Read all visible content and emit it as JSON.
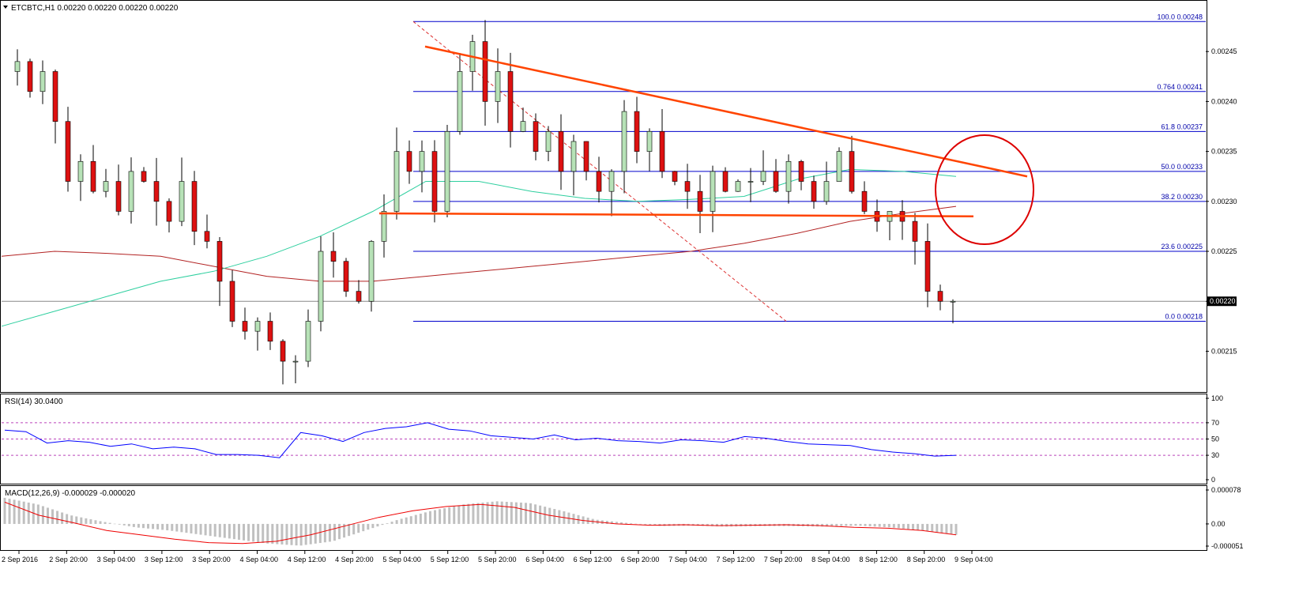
{
  "chart_data": {
    "type": "candlestick",
    "symbol_header": "ETCBTC,H1  0.00220 0.00220 0.00220 0.00220",
    "ylim": [
      0.00211,
      0.0025
    ],
    "price_ticks": [
      "0.00245",
      "0.00240",
      "0.00235",
      "0.00230",
      "0.00225",
      "0.00220",
      "0.00215"
    ],
    "current_price": "0.00220",
    "x_labels": [
      "2 Sep 2016",
      "2 Sep 20:00",
      "3 Sep 04:00",
      "3 Sep 12:00",
      "3 Sep 20:00",
      "4 Sep 04:00",
      "4 Sep 12:00",
      "4 Sep 20:00",
      "5 Sep 04:00",
      "5 Sep 12:00",
      "5 Sep 20:00",
      "6 Sep 04:00",
      "6 Sep 12:00",
      "6 Sep 20:00",
      "7 Sep 04:00",
      "7 Sep 12:00",
      "7 Sep 20:00",
      "8 Sep 04:00",
      "8 Sep 12:00",
      "8 Sep 20:00",
      "9 Sep 04:00"
    ],
    "fib_levels": [
      {
        "label": "100.0  0.00248",
        "price": 0.00248
      },
      {
        "label": "0.764  0.00241",
        "price": 0.00241
      },
      {
        "label": "61.8  0.00237",
        "price": 0.00237
      },
      {
        "label": "50.0  0.00233",
        "price": 0.00233
      },
      {
        "label": "38.2  0.00230",
        "price": 0.0023
      },
      {
        "label": "23.6  0.00225",
        "price": 0.00225
      },
      {
        "label": "0.0  0.00218",
        "price": 0.00218
      }
    ],
    "close_path": [
      0.00243,
      0.00244,
      0.00241,
      0.00243,
      0.00238,
      0.00232,
      0.00234,
      0.00231,
      0.00232,
      0.00229,
      0.00233,
      0.00232,
      0.0023,
      0.00228,
      0.00232,
      0.00227,
      0.00226,
      0.00222,
      0.00218,
      0.00217,
      0.00218,
      0.00216,
      0.00214,
      0.00214,
      0.00218,
      0.00225,
      0.00224,
      0.00221,
      0.0022,
      0.00226,
      0.00229,
      0.00235,
      0.00233,
      0.00235,
      0.00229,
      0.00237,
      0.00243,
      0.00246,
      0.0024,
      0.00243,
      0.00237,
      0.00238,
      0.00235,
      0.00237,
      0.00233,
      0.00236,
      0.00233,
      0.00231,
      0.00233,
      0.00239,
      0.00235,
      0.00237,
      0.00233,
      0.00232,
      0.00231,
      0.00229,
      0.00233,
      0.00231,
      0.00232,
      0.00232,
      0.00233,
      0.00231,
      0.00234,
      0.00232,
      0.0023,
      0.00232,
      0.00235,
      0.00231,
      0.00229,
      0.00228,
      0.00229,
      0.00228,
      0.00226,
      0.00221,
      0.0022,
      0.0022
    ],
    "ma_slow": [
      0.002245,
      0.00225,
      0.002248,
      0.002245,
      0.002235,
      0.002225,
      0.00222,
      0.00222,
      0.002225,
      0.00223,
      0.002235,
      0.00224,
      0.002245,
      0.00225,
      0.002258,
      0.002268,
      0.00228,
      0.002288,
      0.002295
    ],
    "ma_fast": [
      0.002175,
      0.00219,
      0.002205,
      0.00222,
      0.00223,
      0.002245,
      0.002265,
      0.00229,
      0.00232,
      0.00232,
      0.00231,
      0.002303,
      0.0023,
      0.002302,
      0.002305,
      0.002322,
      0.002332,
      0.00233,
      0.002325
    ],
    "trend_lines": [
      {
        "name": "descending-resistance",
        "from": [
          "5 Sep 04:00",
          0.002455
        ],
        "to": [
          "9 Sep 12:00",
          0.002325
        ]
      },
      {
        "name": "horizontal-support",
        "from": [
          "4 Sep 20:00",
          0.002288
        ],
        "to": [
          "9 Sep 08:00",
          0.002285
        ]
      }
    ],
    "rsi": {
      "label": "RSI(14) 30.0400",
      "levels": [
        "100",
        "70",
        "50",
        "30",
        "0"
      ],
      "values": [
        61,
        59,
        45,
        48,
        46,
        41,
        44,
        38,
        40,
        38,
        31,
        31,
        30,
        27,
        58,
        54,
        47,
        58,
        63,
        65,
        70,
        62,
        60,
        54,
        52,
        50,
        55,
        49,
        51,
        48,
        47,
        45,
        49,
        48,
        46,
        53,
        51,
        47,
        44,
        43,
        42,
        37,
        34,
        32,
        29,
        30
      ]
    },
    "macd": {
      "label": "MACD(12,26,9) -0.000029 -0.000020",
      "levels": [
        "0.000078",
        "0.00",
        "-0.000051"
      ],
      "histogram": [
        6e-05,
        4.5e-05,
        2e-05,
        5e-06,
        -8e-06,
        -1.5e-05,
        -2.5e-05,
        -3.5e-05,
        -4.5e-05,
        -5e-05,
        -4e-05,
        -1.5e-05,
        1e-05,
        3e-05,
        4.5e-05,
        5.2e-05,
        4.8e-05,
        3e-05,
        1e-05,
        2e-06,
        -5e-06,
        -4e-06,
        -6e-06,
        -5e-06,
        -5e-06,
        -6e-06,
        -4e-06,
        -8e-06,
        -1.5e-05,
        -2.5e-05
      ],
      "signal": [
        5e-05,
        2e-05,
        3e-06,
        -1.5e-05,
        -2.5e-05,
        -3.5e-05,
        -4.3e-05,
        -4.5e-05,
        -4e-05,
        -2.5e-05,
        -5e-06,
        1.5e-05,
        3e-05,
        4e-05,
        4.5e-05,
        3.8e-05,
        2e-05,
        8e-06,
        0.0,
        -3e-06,
        -2e-06,
        -4e-06,
        -3e-06,
        -2e-06,
        -4e-06,
        -8e-06,
        -1e-05,
        -1.5e-05,
        -2.5e-05
      ]
    }
  }
}
